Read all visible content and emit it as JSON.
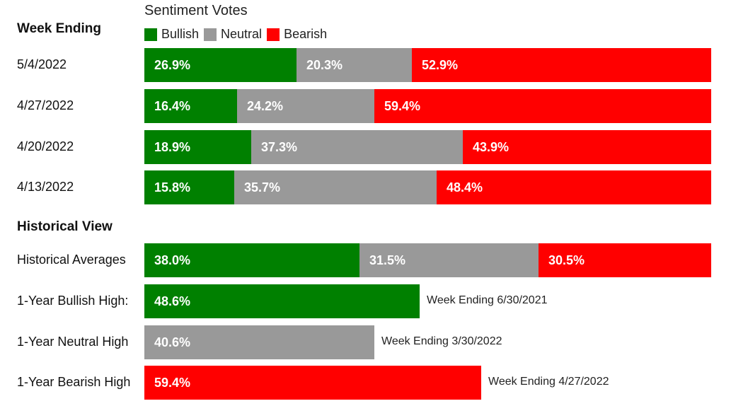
{
  "colors": {
    "bullish": "#008000",
    "neutral": "#999999",
    "bearish": "#ff0000"
  },
  "chart_data": {
    "type": "bar",
    "orientation": "horizontal",
    "stacked": true,
    "title": "Sentiment Votes",
    "legend": [
      {
        "key": "bullish",
        "label": "Bullish"
      },
      {
        "key": "neutral",
        "label": "Neutral"
      },
      {
        "key": "bearish",
        "label": "Bearish"
      }
    ],
    "weekly": {
      "heading": "Week Ending",
      "rows": [
        {
          "label": "5/4/2022",
          "bullish": 26.9,
          "neutral": 20.3,
          "bearish": 52.9,
          "bullish_text": "26.9%",
          "neutral_text": "20.3%",
          "bearish_text": "52.9%"
        },
        {
          "label": "4/27/2022",
          "bullish": 16.4,
          "neutral": 24.2,
          "bearish": 59.4,
          "bullish_text": "16.4%",
          "neutral_text": "24.2%",
          "bearish_text": "59.4%"
        },
        {
          "label": "4/20/2022",
          "bullish": 18.9,
          "neutral": 37.3,
          "bearish": 43.9,
          "bullish_text": "18.9%",
          "neutral_text": "37.3%",
          "bearish_text": "43.9%"
        },
        {
          "label": "4/13/2022",
          "bullish": 15.8,
          "neutral": 35.7,
          "bearish": 48.4,
          "bullish_text": "15.8%",
          "neutral_text": "35.7%",
          "bearish_text": "48.4%"
        }
      ]
    },
    "historical": {
      "heading": "Historical View",
      "averages": {
        "label": "Historical Averages",
        "bullish": 38.0,
        "neutral": 31.5,
        "bearish": 30.5,
        "bullish_text": "38.0%",
        "neutral_text": "31.5%",
        "bearish_text": "30.5%"
      },
      "highs": [
        {
          "label": "1-Year Bullish High:",
          "kind": "bullish",
          "value": 48.6,
          "value_text": "48.6%",
          "note": "Week Ending 6/30/2021"
        },
        {
          "label": "1-Year Neutral High",
          "kind": "neutral",
          "value": 40.6,
          "value_text": "40.6%",
          "note": "Week Ending 3/30/2022"
        },
        {
          "label": "1-Year Bearish High",
          "kind": "bearish",
          "value": 59.4,
          "value_text": "59.4%",
          "note": "Week Ending 4/27/2022"
        }
      ]
    }
  }
}
